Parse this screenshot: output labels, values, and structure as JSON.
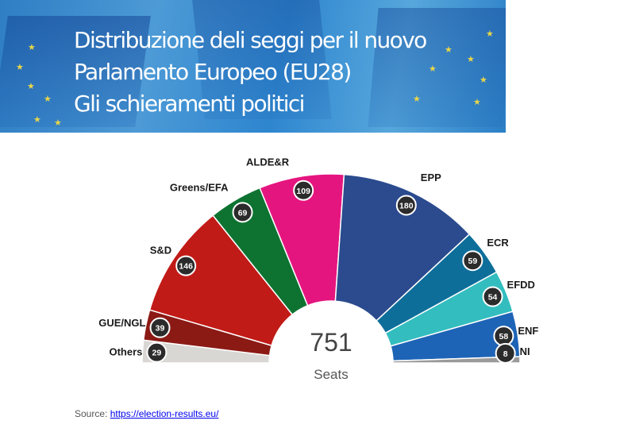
{
  "banner": {
    "title_lines": [
      "Distribuzione deli seggi per il nuovo",
      "Parlamento Europeo (EU28)",
      "Gli schieramenti politici"
    ]
  },
  "chart_data": {
    "type": "parliament",
    "center_value": "751",
    "center_label": "Seats",
    "total": 751,
    "groups": [
      {
        "name": "Others",
        "seats": 29,
        "color": "#d9d7d4"
      },
      {
        "name": "GUE/NGL",
        "seats": 39,
        "color": "#8b1a15"
      },
      {
        "name": "S&D",
        "seats": 146,
        "color": "#c11b17"
      },
      {
        "name": "Greens/EFA",
        "seats": 69,
        "color": "#0e7331"
      },
      {
        "name": "ALDE&R",
        "seats": 109,
        "color": "#e5157f"
      },
      {
        "name": "EPP",
        "seats": 180,
        "color": "#2b4b8e"
      },
      {
        "name": "ECR",
        "seats": 59,
        "color": "#0e6e9a"
      },
      {
        "name": "EFDD",
        "seats": 54,
        "color": "#33bdbf"
      },
      {
        "name": "ENF",
        "seats": 58,
        "color": "#1e64b6"
      },
      {
        "name": "NI",
        "seats": 8,
        "color": "#9a9a9a"
      }
    ]
  },
  "source": {
    "label": "Source: ",
    "link_text": "https://election-results.eu/"
  }
}
